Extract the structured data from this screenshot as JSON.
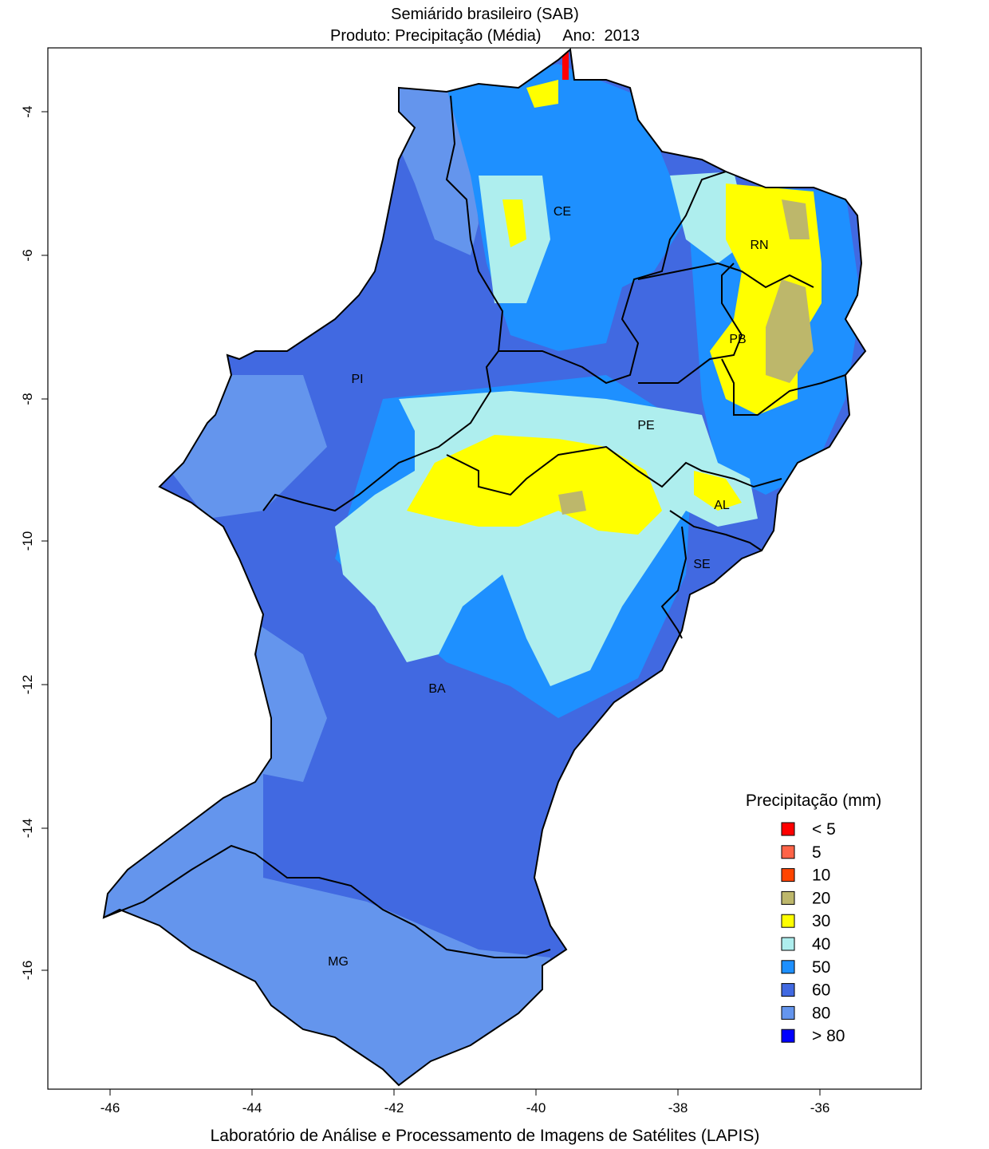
{
  "title": {
    "line1": "Semiárido brasileiro (SAB)",
    "line2": "Produto: Precipitação (Média)     Ano:  2013"
  },
  "footer": "Laboratório de Análise e Processamento de Imagens de Satélites (LAPIS)",
  "axes": {
    "x_ticks": [
      "-46",
      "-44",
      "-42",
      "-40",
      "-38",
      "-36"
    ],
    "y_ticks": [
      "-4",
      "-6",
      "-8",
      "-10",
      "-12",
      "-14",
      "-16"
    ]
  },
  "states": [
    {
      "label": "CE"
    },
    {
      "label": "RN"
    },
    {
      "label": "PB"
    },
    {
      "label": "PI"
    },
    {
      "label": "PE"
    },
    {
      "label": "AL"
    },
    {
      "label": "SE"
    },
    {
      "label": "BA"
    },
    {
      "label": "MG"
    }
  ],
  "legend": {
    "title": "Precipitação (mm)",
    "items": [
      {
        "label": "< 5",
        "color": "#ff0000"
      },
      {
        "label": "5",
        "color": "#ff6347"
      },
      {
        "label": "10",
        "color": "#ff4500"
      },
      {
        "label": "20",
        "color": "#bdb76b"
      },
      {
        "label": "30",
        "color": "#ffff00"
      },
      {
        "label": "40",
        "color": "#aeeeee"
      },
      {
        "label": "50",
        "color": "#1e90ff"
      },
      {
        "label": "60",
        "color": "#4169e1"
      },
      {
        "label": "80",
        "color": "#6495ed"
      },
      {
        "label": "> 80",
        "color": "#0000ff"
      }
    ]
  }
}
